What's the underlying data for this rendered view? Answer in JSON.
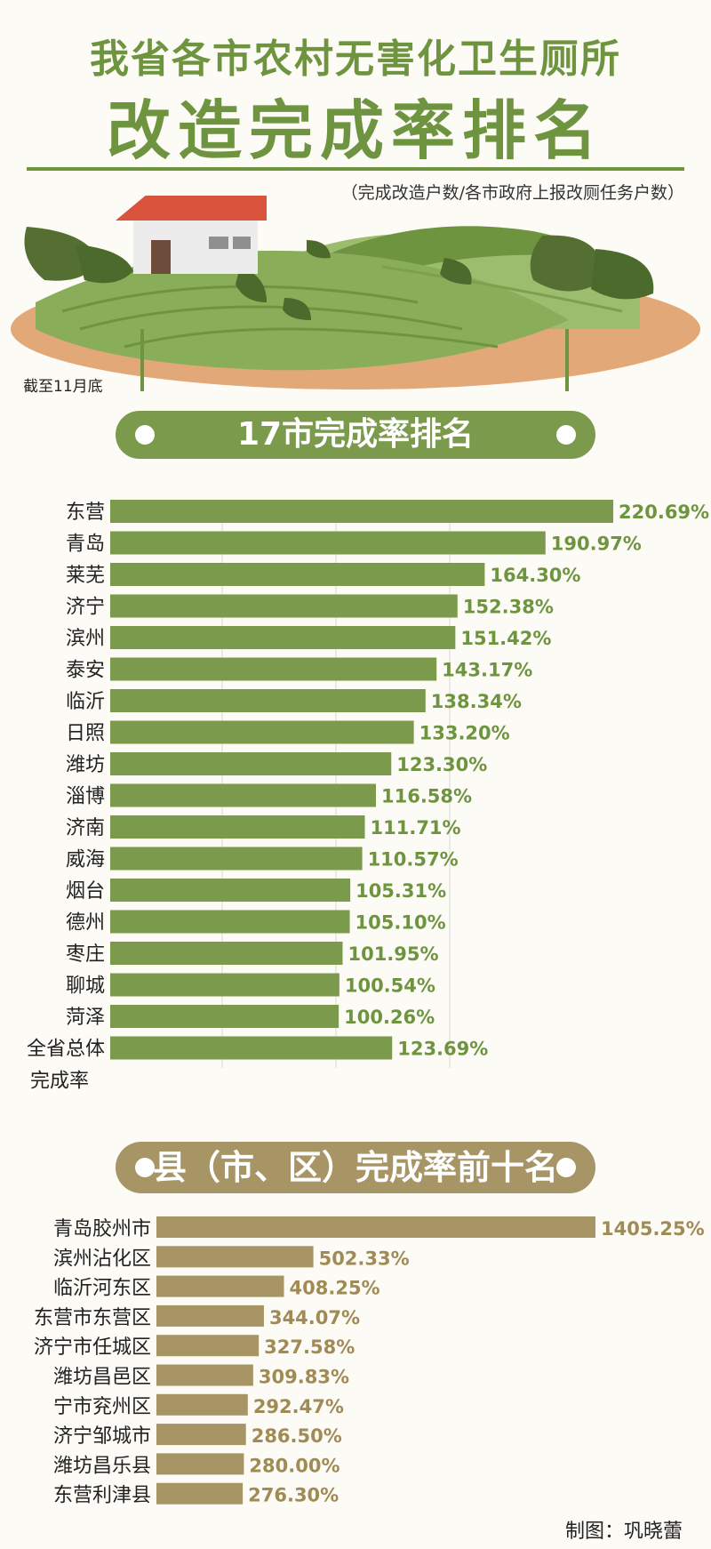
{
  "header": {
    "title_line1": "我省各市农村无害化卫生厕所",
    "title_line2": "改造完成率排名",
    "subtitle": "（完成改造户数/各市政府上报改厕任务户数）",
    "cutoff_note": "截至11月底"
  },
  "sections": {
    "city_banner": "17市完成率排名",
    "county_banner": "县（市、区）完成率前十名"
  },
  "colors": {
    "green": "#7b9a4c",
    "green_label": "#6f9440",
    "tan": "#a79565",
    "tan_label": "#a08a55"
  },
  "chart_data": [
    {
      "type": "bar",
      "orientation": "horizontal",
      "categories": [
        "东营",
        "青岛",
        "莱芜",
        "济宁",
        "滨州",
        "泰安",
        "临沂",
        "日照",
        "潍坊",
        "淄博",
        "济南",
        "威海",
        "烟台",
        "德州",
        "枣庄",
        "聊城",
        "菏泽",
        "全省总体完成率"
      ],
      "values": [
        220.69,
        190.97,
        164.3,
        152.38,
        151.42,
        143.17,
        138.34,
        133.2,
        123.3,
        116.58,
        111.71,
        110.57,
        105.31,
        105.1,
        101.95,
        100.54,
        100.26,
        123.69
      ],
      "labels": [
        "220.69%",
        "190.97%",
        "164.30%",
        "152.38%",
        "151.42%",
        "143.17%",
        "138.34%",
        "133.20%",
        "123.30%",
        "116.58%",
        "111.71%",
        "110.57%",
        "105.31%",
        "105.10%",
        "101.95%",
        "100.54%",
        "100.26%",
        "123.69%"
      ],
      "xlim": [
        0,
        220.69
      ],
      "grid": true
    },
    {
      "type": "bar",
      "orientation": "horizontal",
      "categories": [
        "青岛胶州市",
        "滨州沾化区",
        "临沂河东区",
        "东营市东营区",
        "济宁市任城区",
        "潍坊昌邑区",
        "宁市兖州区",
        "济宁邹城市",
        "潍坊昌乐县",
        "东营利津县"
      ],
      "values": [
        1405.25,
        502.33,
        408.25,
        344.07,
        327.58,
        309.83,
        292.47,
        286.5,
        280.0,
        276.3
      ],
      "labels": [
        "1405.25%",
        "502.33%",
        "408.25%",
        "344.07%",
        "327.58%",
        "309.83%",
        "292.47%",
        "286.50%",
        "280.00%",
        "276.30%"
      ],
      "xlim": [
        0,
        1405.25
      ],
      "grid": false
    }
  ],
  "footer": {
    "credit": "制图：巩晓蕾"
  }
}
